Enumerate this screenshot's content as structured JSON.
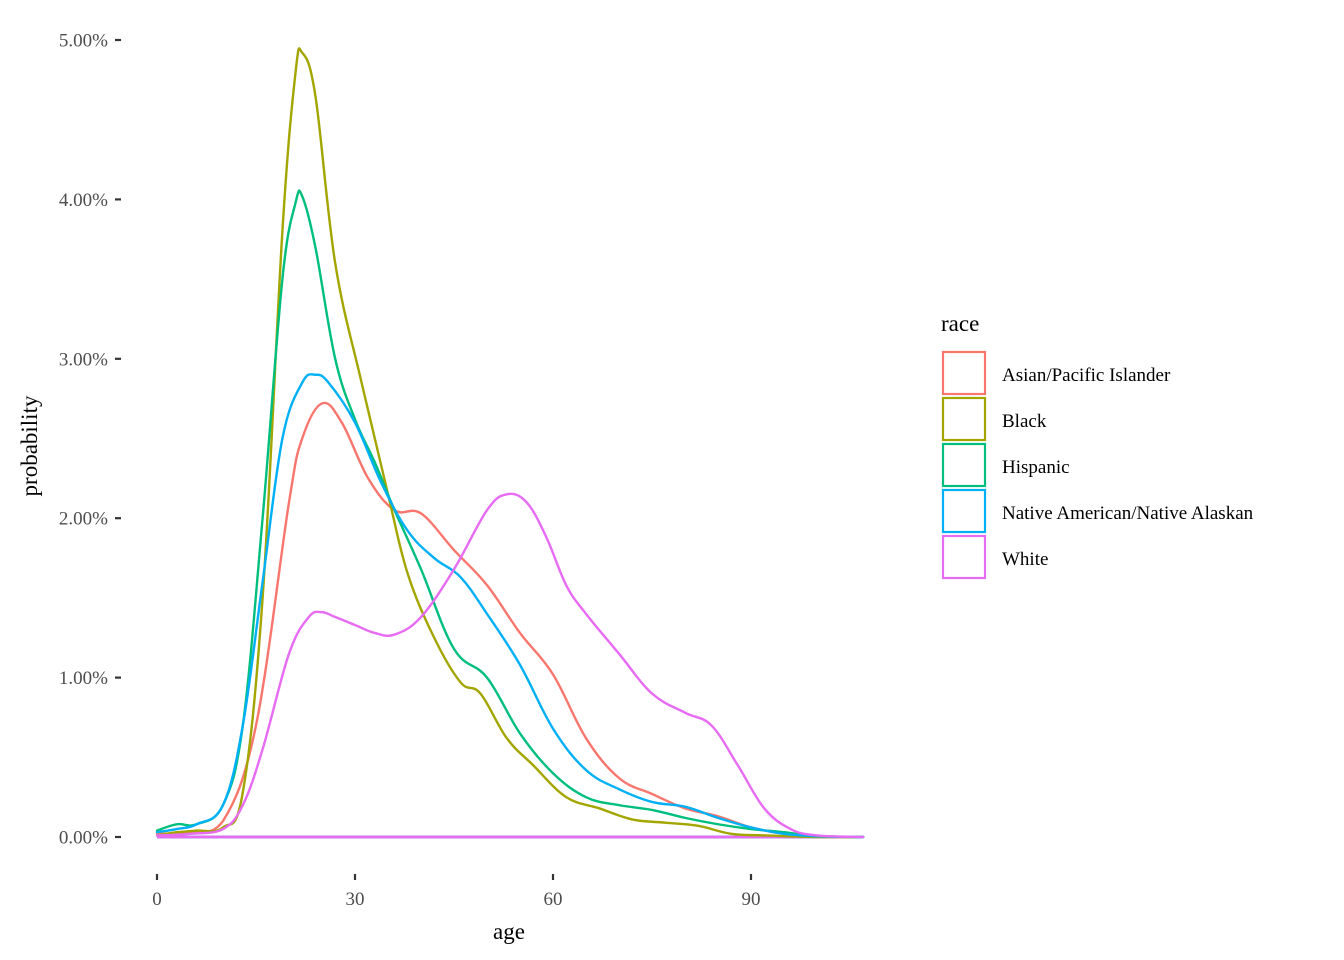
{
  "chart_data": {
    "type": "line",
    "xlabel": "age",
    "ylabel": "probability",
    "xlim": [
      -3,
      107
    ],
    "ylim": [
      0,
      0.05
    ],
    "x_ticks": [
      0,
      30,
      60,
      90
    ],
    "x_tick_labels": [
      "0",
      "30",
      "60",
      "90"
    ],
    "y_ticks": [
      0,
      0.01,
      0.02,
      0.03,
      0.04,
      0.05
    ],
    "y_tick_labels": [
      "0.00%",
      "1.00%",
      "2.00%",
      "3.00%",
      "4.00%",
      "5.00%"
    ],
    "grid": false,
    "legend": {
      "title": "race",
      "position": "right"
    },
    "series": [
      {
        "name": "Asian/Pacific Islander",
        "color": "#F8766D",
        "x": [
          0,
          5,
          10,
          15,
          20,
          22,
          25,
          28,
          32,
          36,
          40,
          45,
          50,
          55,
          60,
          65,
          70,
          75,
          80,
          85,
          90,
          95,
          100,
          107
        ],
        "y": [
          0.0002,
          0.0003,
          0.001,
          0.007,
          0.021,
          0.025,
          0.0272,
          0.026,
          0.0225,
          0.0205,
          0.0203,
          0.018,
          0.0158,
          0.0128,
          0.0102,
          0.0062,
          0.0037,
          0.0027,
          0.0018,
          0.0013,
          0.0006,
          0.0002,
          5e-05,
          0
        ]
      },
      {
        "name": "Black",
        "color": "#A3A500",
        "x": [
          0,
          3,
          6,
          10,
          13,
          16,
          19,
          21,
          22,
          24,
          27,
          31,
          35,
          38,
          42,
          46,
          49,
          53,
          57,
          62,
          67,
          72,
          77,
          82,
          87,
          92,
          100,
          107
        ],
        "y": [
          0.0001,
          0.0003,
          0.0004,
          0.0006,
          0.0028,
          0.015,
          0.038,
          0.048,
          0.0492,
          0.0465,
          0.036,
          0.0285,
          0.0215,
          0.0165,
          0.0125,
          0.0097,
          0.009,
          0.0062,
          0.0045,
          0.0025,
          0.0018,
          0.0011,
          0.0009,
          0.0007,
          0.0002,
          0.0001,
          0,
          0
        ]
      },
      {
        "name": "Hispanic",
        "color": "#00BF7D",
        "x": [
          0,
          3,
          6,
          10,
          13,
          16,
          19,
          21,
          22,
          24,
          27,
          30,
          33,
          36,
          40,
          45,
          50,
          55,
          60,
          65,
          70,
          75,
          80,
          85,
          90,
          95,
          100,
          107
        ],
        "y": [
          0.0004,
          0.0008,
          0.0008,
          0.002,
          0.007,
          0.02,
          0.035,
          0.0398,
          0.0402,
          0.037,
          0.03,
          0.0262,
          0.0235,
          0.0205,
          0.0168,
          0.0118,
          0.01,
          0.0065,
          0.004,
          0.0025,
          0.002,
          0.0017,
          0.0012,
          0.0008,
          0.0005,
          0.0003,
          5e-05,
          0
        ]
      },
      {
        "name": "Native American/Native Alaskan",
        "color": "#00B0F6",
        "x": [
          0,
          3,
          6,
          10,
          13,
          16,
          19,
          22,
          24,
          26,
          30,
          34,
          38,
          42,
          46,
          50,
          55,
          60,
          65,
          70,
          75,
          80,
          85,
          90,
          95,
          100,
          107
        ],
        "y": [
          0.0003,
          0.0005,
          0.0008,
          0.002,
          0.007,
          0.016,
          0.025,
          0.0285,
          0.029,
          0.0285,
          0.026,
          0.0222,
          0.0192,
          0.0175,
          0.0163,
          0.014,
          0.0108,
          0.0068,
          0.0042,
          0.003,
          0.0022,
          0.0019,
          0.0012,
          0.0006,
          0.0002,
          5e-05,
          0
        ]
      },
      {
        "name": "White",
        "color": "#E76BF3",
        "x": [
          0,
          5,
          10,
          13,
          16,
          20,
          23,
          25,
          27,
          30,
          33,
          36,
          40,
          45,
          50,
          53,
          56,
          59,
          62,
          65,
          70,
          75,
          80,
          84,
          88,
          92,
          96,
          100,
          107
        ],
        "y": [
          0.0001,
          0.0002,
          0.0005,
          0.002,
          0.0055,
          0.0115,
          0.0138,
          0.0141,
          0.0138,
          0.0133,
          0.0128,
          0.0127,
          0.0138,
          0.0168,
          0.0205,
          0.0215,
          0.021,
          0.0188,
          0.0158,
          0.014,
          0.0115,
          0.009,
          0.0078,
          0.007,
          0.0045,
          0.0018,
          0.0005,
          0.0001,
          0
        ]
      }
    ],
    "baseline": {
      "color": "#E76BF3",
      "y": 0
    }
  }
}
